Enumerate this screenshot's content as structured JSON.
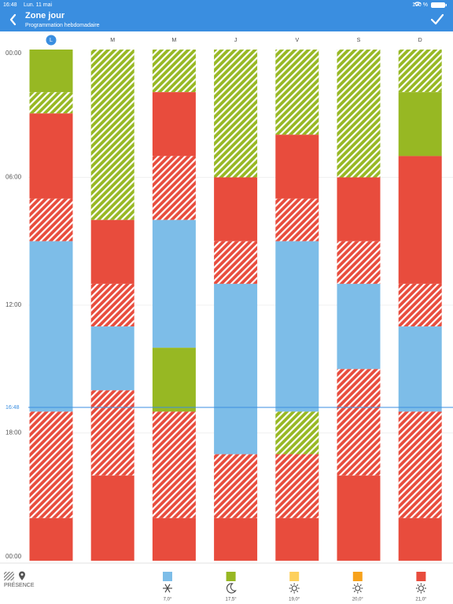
{
  "status_bar": {
    "time": "16:48",
    "date": "Lun. 11 mai",
    "battery": "100 %"
  },
  "header": {
    "title": "Zone jour",
    "subtitle": "Programmation hebdomadaire"
  },
  "days": [
    "L",
    "M",
    "M",
    "J",
    "V",
    "S",
    "D"
  ],
  "today": 0,
  "time_labels": [
    "00:00",
    "06:00",
    "12:00",
    "18:00",
    "00:00"
  ],
  "now_label": "16:48",
  "schedule": [
    {
      "segments": [
        {
          "from": 0,
          "to": 2,
          "level": 1,
          "hatched": false
        },
        {
          "from": 2,
          "to": 3,
          "level": 1,
          "hatched": true
        },
        {
          "from": 3,
          "to": 7,
          "level": 4,
          "hatched": false
        },
        {
          "from": 7,
          "to": 9,
          "level": 4,
          "hatched": true
        },
        {
          "from": 9,
          "to": 17,
          "level": 0,
          "hatched": false
        },
        {
          "from": 17,
          "to": 22,
          "level": 4,
          "hatched": true
        },
        {
          "from": 22,
          "to": 24,
          "level": 4,
          "hatched": false
        }
      ]
    },
    {
      "segments": [
        {
          "from": 0,
          "to": 8,
          "level": 1,
          "hatched": true
        },
        {
          "from": 8,
          "to": 11,
          "level": 4,
          "hatched": false
        },
        {
          "from": 11,
          "to": 13,
          "level": 4,
          "hatched": true
        },
        {
          "from": 13,
          "to": 16,
          "level": 0,
          "hatched": false
        },
        {
          "from": 16,
          "to": 20,
          "level": 4,
          "hatched": true
        },
        {
          "from": 20,
          "to": 24,
          "level": 4,
          "hatched": false
        }
      ]
    },
    {
      "segments": [
        {
          "from": 0,
          "to": 2,
          "level": 1,
          "hatched": true
        },
        {
          "from": 2,
          "to": 5,
          "level": 4,
          "hatched": false
        },
        {
          "from": 5,
          "to": 8,
          "level": 4,
          "hatched": true
        },
        {
          "from": 8,
          "to": 14,
          "level": 0,
          "hatched": false
        },
        {
          "from": 14,
          "to": 17,
          "level": 1,
          "hatched": false
        },
        {
          "from": 17,
          "to": 22,
          "level": 4,
          "hatched": true
        },
        {
          "from": 22,
          "to": 24,
          "level": 4,
          "hatched": false
        }
      ]
    },
    {
      "segments": [
        {
          "from": 0,
          "to": 6,
          "level": 1,
          "hatched": true
        },
        {
          "from": 6,
          "to": 9,
          "level": 4,
          "hatched": false
        },
        {
          "from": 9,
          "to": 11,
          "level": 4,
          "hatched": true
        },
        {
          "from": 11,
          "to": 19,
          "level": 0,
          "hatched": false
        },
        {
          "from": 19,
          "to": 22,
          "level": 4,
          "hatched": true
        },
        {
          "from": 22,
          "to": 24,
          "level": 4,
          "hatched": false
        }
      ]
    },
    {
      "segments": [
        {
          "from": 0,
          "to": 4,
          "level": 1,
          "hatched": true
        },
        {
          "from": 4,
          "to": 7,
          "level": 4,
          "hatched": false
        },
        {
          "from": 7,
          "to": 9,
          "level": 4,
          "hatched": true
        },
        {
          "from": 9,
          "to": 17,
          "level": 0,
          "hatched": false
        },
        {
          "from": 17,
          "to": 19,
          "level": 1,
          "hatched": true
        },
        {
          "from": 19,
          "to": 22,
          "level": 4,
          "hatched": true
        },
        {
          "from": 22,
          "to": 24,
          "level": 4,
          "hatched": false
        }
      ]
    },
    {
      "segments": [
        {
          "from": 0,
          "to": 6,
          "level": 1,
          "hatched": true
        },
        {
          "from": 6,
          "to": 9,
          "level": 4,
          "hatched": false
        },
        {
          "from": 9,
          "to": 11,
          "level": 4,
          "hatched": true
        },
        {
          "from": 11,
          "to": 15,
          "level": 0,
          "hatched": false
        },
        {
          "from": 15,
          "to": 20,
          "level": 4,
          "hatched": true
        },
        {
          "from": 20,
          "to": 24,
          "level": 4,
          "hatched": false
        }
      ]
    },
    {
      "segments": [
        {
          "from": 0,
          "to": 2,
          "level": 1,
          "hatched": true
        },
        {
          "from": 2,
          "to": 5,
          "level": 1,
          "hatched": false
        },
        {
          "from": 5,
          "to": 11,
          "level": 4,
          "hatched": false
        },
        {
          "from": 11,
          "to": 13,
          "level": 4,
          "hatched": true
        },
        {
          "from": 13,
          "to": 17,
          "level": 0,
          "hatched": false
        },
        {
          "from": 17,
          "to": 22,
          "level": 4,
          "hatched": true
        },
        {
          "from": 22,
          "to": 24,
          "level": 4,
          "hatched": false
        }
      ]
    }
  ],
  "legend": {
    "presence": "PRÉSENCE",
    "levels": [
      {
        "color": "#7dbde8",
        "label": "7,0°",
        "icon": "snow"
      },
      {
        "color": "#97b823",
        "label": "17,5°",
        "icon": "moon"
      },
      {
        "color": "#fdd05c",
        "label": "19,0°",
        "icon": "sun"
      },
      {
        "color": "#f7a21b",
        "label": "20,0°",
        "icon": "sun"
      },
      {
        "color": "#e84c3d",
        "label": "21,0°",
        "icon": "sun"
      }
    ]
  }
}
